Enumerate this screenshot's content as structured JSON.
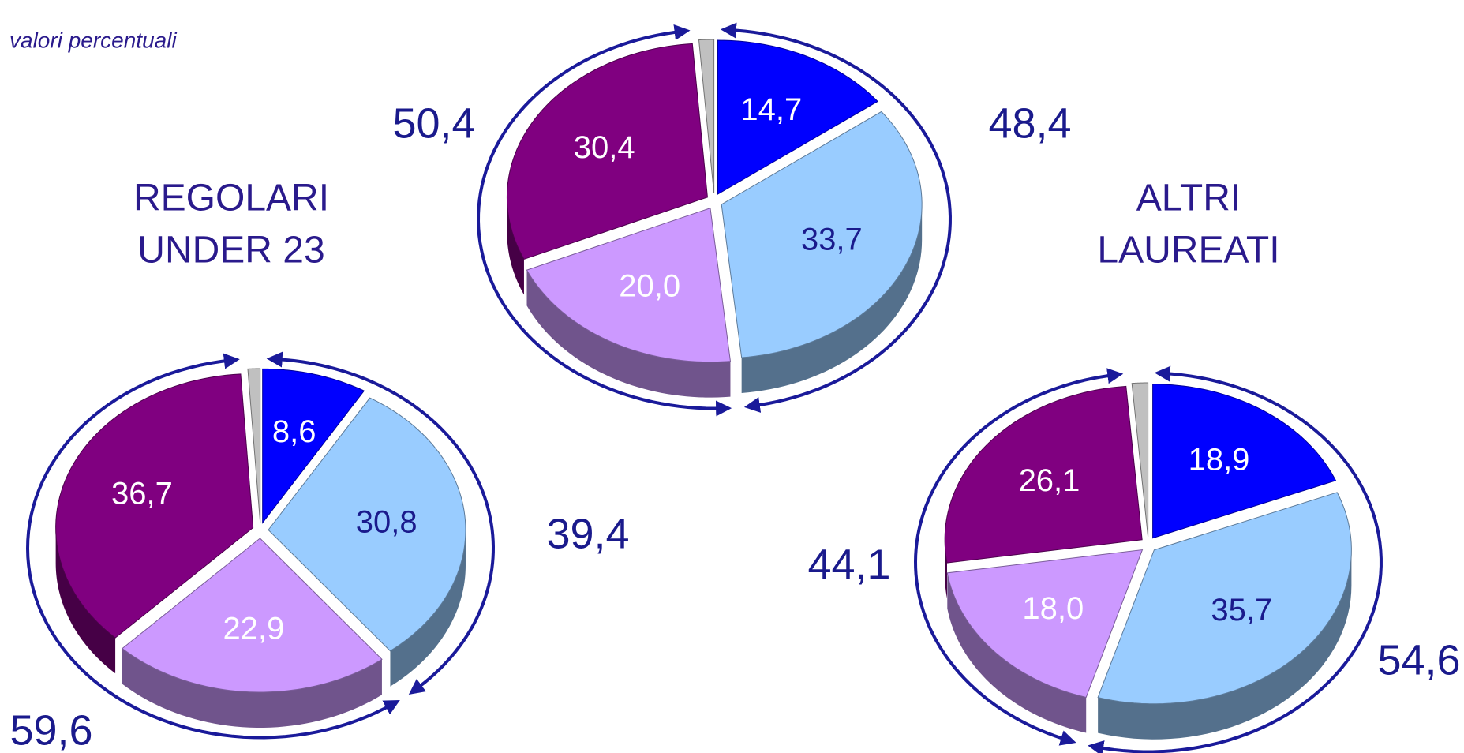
{
  "subtitle": "valori percentuali",
  "chart_data": [
    {
      "type": "pie",
      "values": [
        14.7,
        33.7,
        20.0,
        30.4,
        1.2
      ],
      "value_labels": [
        "14,7",
        "33,7",
        "20,0",
        "30,4",
        null
      ],
      "colors": [
        "#0000ff",
        "#99ccff",
        "#cc99ff",
        "#800080",
        "#c0c0c0"
      ],
      "groups": [
        {
          "value": 48.4,
          "label": "48,4"
        },
        {
          "value": 50.4,
          "label": "50,4"
        }
      ]
    },
    {
      "type": "pie",
      "title": [
        "REGOLARI",
        "UNDER 23"
      ],
      "values": [
        8.6,
        30.8,
        22.9,
        36.7,
        1.0
      ],
      "value_labels": [
        "8,6",
        "30,8",
        "22,9",
        "36,7",
        null
      ],
      "colors": [
        "#0000ff",
        "#99ccff",
        "#cc99ff",
        "#800080",
        "#c0c0c0"
      ],
      "groups": [
        {
          "value": 39.4,
          "label": "39,4"
        },
        {
          "value": 59.6,
          "label": "59,6"
        }
      ]
    },
    {
      "type": "pie",
      "title": [
        "ALTRI",
        "LAUREATI"
      ],
      "values": [
        18.9,
        35.7,
        18.0,
        26.1,
        1.3
      ],
      "value_labels": [
        "18,9",
        "35,7",
        "18,0",
        "26,1",
        null
      ],
      "colors": [
        "#0000ff",
        "#99ccff",
        "#cc99ff",
        "#800080",
        "#c0c0c0"
      ],
      "groups": [
        {
          "value": 54.6,
          "label": "54,6"
        },
        {
          "value": 44.1,
          "label": "44,1"
        }
      ]
    }
  ]
}
